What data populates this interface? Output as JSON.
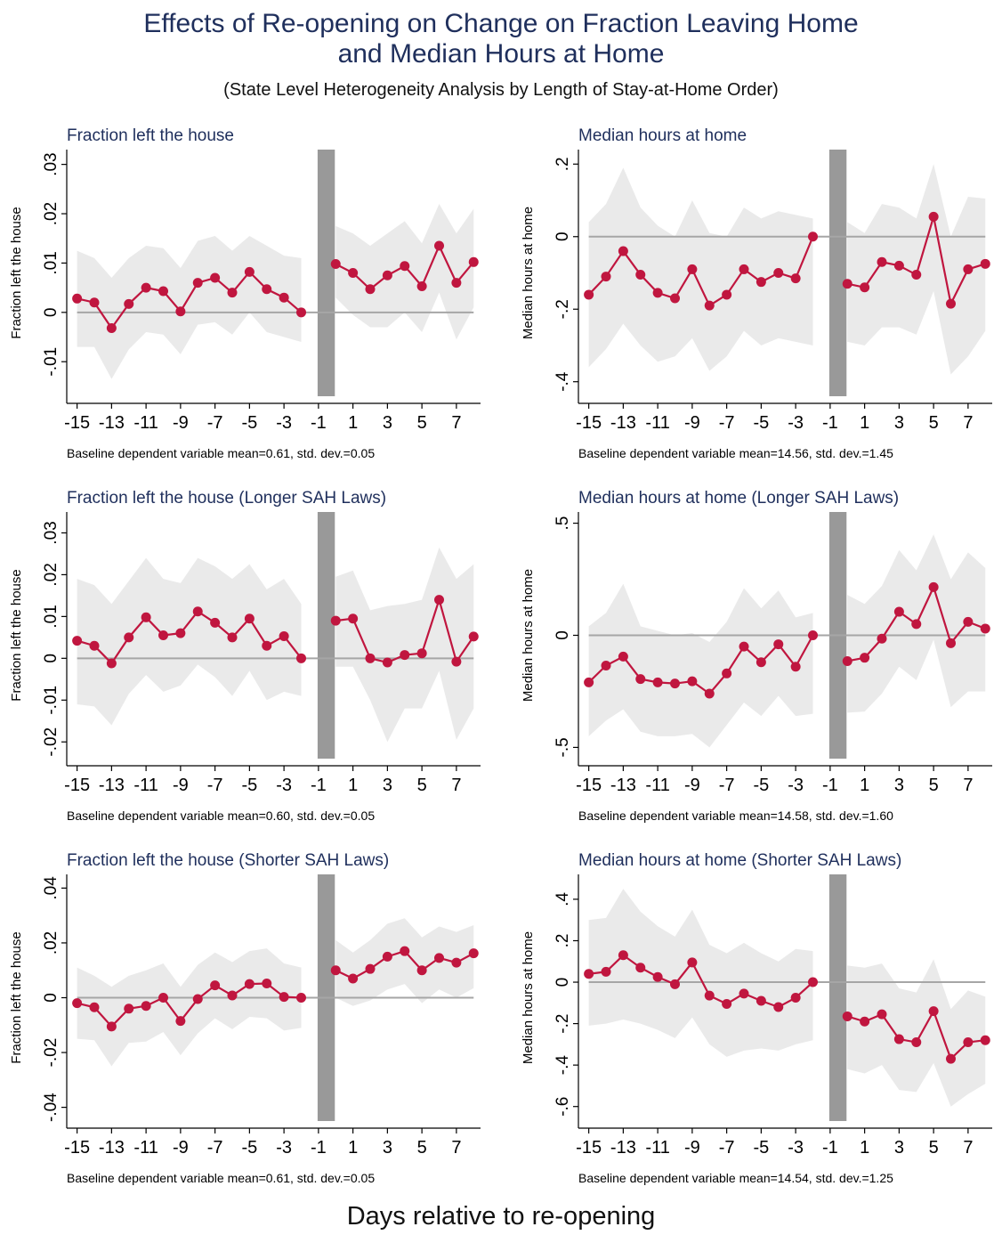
{
  "figure": {
    "title_line1": "Effects of Re-opening on Change on Fraction Leaving Home",
    "title_line2": "and Median Hours at Home",
    "subtitle": "(State Level Heterogeneity Analysis by Length of Stay-at-Home Order)",
    "xlabel": "Days relative to re-opening"
  },
  "colors": {
    "line": "#c0163f",
    "ci": "#e6e6e6",
    "zero": "#a6a6a6",
    "bar": "#999999",
    "title": "#1f2f5c"
  },
  "chart_data": [
    {
      "type": "line",
      "title": "Fraction left the house",
      "ylabel": "Fraction left the house",
      "note": "Baseline dependent variable mean=0.61, std. dev.=0.05",
      "ylim": [
        -0.017,
        0.033
      ],
      "yticks": [
        -0.01,
        0,
        0.01,
        0.02,
        0.03
      ],
      "ytick_labels": [
        "-.01",
        "0",
        ".01",
        ".02",
        ".03"
      ],
      "xticks": [
        -15,
        -13,
        -11,
        -9,
        -7,
        -5,
        -3,
        -1,
        1,
        3,
        5,
        7
      ],
      "x": [
        -15,
        -14,
        -13,
        -12,
        -11,
        -10,
        -9,
        -8,
        -7,
        -6,
        -5,
        -4,
        -3,
        -2,
        0,
        1,
        2,
        3,
        4,
        5,
        6,
        7,
        8
      ],
      "y": [
        0.0028,
        0.002,
        -0.0032,
        0.0017,
        0.005,
        0.0043,
        0.0002,
        0.006,
        0.007,
        0.004,
        0.0082,
        0.0047,
        0.003,
        0.0,
        0.0098,
        0.008,
        0.0047,
        0.0075,
        0.0094,
        0.0053,
        0.0135,
        0.006,
        0.0102
      ],
      "ci_low": [
        -0.007,
        -0.007,
        -0.0135,
        -0.0075,
        -0.004,
        -0.0045,
        -0.0085,
        -0.0025,
        -0.002,
        -0.0045,
        0.0,
        -0.004,
        -0.005,
        -0.006,
        0.003,
        -0.0005,
        -0.003,
        -0.003,
        0.0,
        -0.004,
        0.004,
        -0.0055,
        0.001
      ],
      "ci_high": [
        0.0125,
        0.011,
        0.007,
        0.011,
        0.0135,
        0.013,
        0.009,
        0.0145,
        0.0155,
        0.0125,
        0.0155,
        0.0135,
        0.0115,
        0.011,
        0.0175,
        0.016,
        0.0135,
        0.016,
        0.0185,
        0.014,
        0.022,
        0.016,
        0.021
      ],
      "break_at": -0.5
    },
    {
      "type": "line",
      "title": "Median hours at home",
      "ylabel": "Median hours at home",
      "note": "Baseline dependent variable mean=14.56, std. dev.=1.45",
      "ylim": [
        -0.44,
        0.24
      ],
      "yticks": [
        -0.4,
        -0.2,
        0,
        0.2
      ],
      "ytick_labels": [
        "-.4",
        "-.2",
        "0",
        ".2"
      ],
      "xticks": [
        -15,
        -13,
        -11,
        -9,
        -7,
        -5,
        -3,
        -1,
        1,
        3,
        5,
        7
      ],
      "x": [
        -15,
        -14,
        -13,
        -12,
        -11,
        -10,
        -9,
        -8,
        -7,
        -6,
        -5,
        -4,
        -3,
        -2,
        0,
        1,
        2,
        3,
        4,
        5,
        6,
        7,
        8
      ],
      "y": [
        -0.16,
        -0.11,
        -0.04,
        -0.105,
        -0.155,
        -0.17,
        -0.09,
        -0.19,
        -0.16,
        -0.09,
        -0.125,
        -0.1,
        -0.115,
        0.0,
        -0.13,
        -0.14,
        -0.07,
        -0.08,
        -0.105,
        0.055,
        -0.185,
        -0.09,
        -0.075
      ],
      "ci_low": [
        -0.36,
        -0.31,
        -0.24,
        -0.3,
        -0.345,
        -0.33,
        -0.28,
        -0.37,
        -0.33,
        -0.26,
        -0.3,
        -0.28,
        -0.29,
        -0.3,
        -0.29,
        -0.3,
        -0.25,
        -0.25,
        -0.27,
        -0.15,
        -0.38,
        -0.33,
        -0.26
      ],
      "ci_high": [
        0.04,
        0.09,
        0.19,
        0.08,
        0.03,
        0.0,
        0.1,
        0.01,
        0.0,
        0.08,
        0.05,
        0.07,
        0.06,
        0.05,
        0.04,
        0.01,
        0.09,
        0.08,
        0.05,
        0.2,
        0.0,
        0.11,
        0.105
      ],
      "break_at": -0.5
    },
    {
      "type": "line",
      "title": "Fraction left the house (Longer SAH Laws)",
      "ylabel": "Fraction left the house",
      "note": "Baseline dependent variable mean=0.60, std. dev.=0.05",
      "ylim": [
        -0.024,
        0.035
      ],
      "yticks": [
        -0.02,
        -0.01,
        0,
        0.01,
        0.02,
        0.03
      ],
      "ytick_labels": [
        "-.02",
        "-.01",
        "0",
        ".01",
        ".02",
        ".03"
      ],
      "xticks": [
        -15,
        -13,
        -11,
        -9,
        -7,
        -5,
        -3,
        -1,
        1,
        3,
        5,
        7
      ],
      "x": [
        -15,
        -14,
        -13,
        -12,
        -11,
        -10,
        -9,
        -8,
        -7,
        -6,
        -5,
        -4,
        -3,
        -2,
        0,
        1,
        2,
        3,
        4,
        5,
        6,
        7,
        8
      ],
      "y": [
        0.0042,
        0.003,
        -0.0012,
        0.005,
        0.0098,
        0.0055,
        0.006,
        0.0112,
        0.0085,
        0.005,
        0.0095,
        0.003,
        0.0053,
        0.0,
        0.009,
        0.0095,
        0.0,
        -0.001,
        0.0008,
        0.0012,
        0.014,
        -0.0008,
        0.0052
      ],
      "ci_low": [
        -0.011,
        -0.0115,
        -0.016,
        -0.0085,
        -0.004,
        -0.008,
        -0.0065,
        -0.0015,
        -0.0045,
        -0.009,
        -0.003,
        -0.01,
        -0.008,
        -0.009,
        -0.002,
        -0.002,
        -0.01,
        -0.02,
        -0.012,
        -0.012,
        -0.003,
        -0.0195,
        -0.012
      ],
      "ci_high": [
        0.019,
        0.0175,
        0.013,
        0.0185,
        0.024,
        0.019,
        0.018,
        0.024,
        0.022,
        0.019,
        0.0225,
        0.0165,
        0.019,
        0.013,
        0.0195,
        0.021,
        0.0115,
        0.0125,
        0.013,
        0.014,
        0.0265,
        0.019,
        0.0225
      ],
      "break_at": -0.5
    },
    {
      "type": "line",
      "title": "Median hours at home (Longer SAH Laws)",
      "ylabel": "Median hours at home",
      "note": "Baseline dependent variable mean=14.58, std. dev.=1.60",
      "ylim": [
        -0.55,
        0.55
      ],
      "yticks": [
        -0.5,
        0,
        0.5
      ],
      "ytick_labels": [
        "-.5",
        "0",
        ".5"
      ],
      "xticks": [
        -15,
        -13,
        -11,
        -9,
        -7,
        -5,
        -3,
        -1,
        1,
        3,
        5,
        7
      ],
      "x": [
        -15,
        -14,
        -13,
        -12,
        -11,
        -10,
        -9,
        -8,
        -7,
        -6,
        -5,
        -4,
        -3,
        -2,
        0,
        1,
        2,
        3,
        4,
        5,
        6,
        7,
        8
      ],
      "y": [
        -0.21,
        -0.135,
        -0.095,
        -0.195,
        -0.21,
        -0.215,
        -0.205,
        -0.26,
        -0.17,
        -0.05,
        -0.12,
        -0.04,
        -0.14,
        0.0,
        -0.115,
        -0.1,
        -0.015,
        0.105,
        0.05,
        0.215,
        -0.035,
        0.06,
        0.03
      ],
      "ci_low": [
        -0.45,
        -0.38,
        -0.33,
        -0.43,
        -0.45,
        -0.45,
        -0.44,
        -0.5,
        -0.4,
        -0.3,
        -0.36,
        -0.27,
        -0.36,
        -0.35,
        -0.345,
        -0.34,
        -0.26,
        -0.14,
        -0.2,
        -0.02,
        -0.32,
        -0.25,
        -0.25
      ],
      "ci_high": [
        0.04,
        0.1,
        0.23,
        0.04,
        0.02,
        0.0,
        0.01,
        -0.03,
        0.06,
        0.21,
        0.12,
        0.2,
        0.08,
        0.1,
        0.18,
        0.14,
        0.22,
        0.38,
        0.29,
        0.45,
        0.25,
        0.37,
        0.3
      ],
      "break_at": -0.5
    },
    {
      "type": "line",
      "title": "Fraction left the house (Shorter SAH Laws)",
      "ylabel": "Fraction left the house",
      "note": "Baseline dependent variable mean=0.61, std. dev.=0.05",
      "ylim": [
        -0.045,
        0.045
      ],
      "yticks": [
        -0.04,
        -0.02,
        0,
        0.02,
        0.04
      ],
      "ytick_labels": [
        "-.04",
        "-.02",
        "0",
        ".02",
        ".04"
      ],
      "xticks": [
        -15,
        -13,
        -11,
        -9,
        -7,
        -5,
        -3,
        -1,
        1,
        3,
        5,
        7
      ],
      "x": [
        -15,
        -14,
        -13,
        -12,
        -11,
        -10,
        -9,
        -8,
        -7,
        -6,
        -5,
        -4,
        -3,
        -2,
        0,
        1,
        2,
        3,
        4,
        5,
        6,
        7,
        8
      ],
      "y": [
        -0.002,
        -0.0035,
        -0.0105,
        -0.004,
        -0.003,
        0.0,
        -0.0085,
        -0.0005,
        0.0045,
        0.0008,
        0.005,
        0.0052,
        0.0003,
        0.0,
        0.01,
        0.007,
        0.0105,
        0.015,
        0.017,
        0.01,
        0.0145,
        0.0128,
        0.0162
      ],
      "ci_low": [
        -0.015,
        -0.0155,
        -0.025,
        -0.0165,
        -0.016,
        -0.0125,
        -0.021,
        -0.013,
        -0.0075,
        -0.0115,
        -0.007,
        -0.0075,
        -0.012,
        -0.011,
        0.0,
        -0.003,
        -0.001,
        0.003,
        0.005,
        -0.002,
        0.003,
        0.0,
        0.0035
      ],
      "ci_high": [
        0.011,
        0.008,
        0.004,
        0.008,
        0.01,
        0.0125,
        0.004,
        0.012,
        0.0165,
        0.013,
        0.017,
        0.018,
        0.0125,
        0.011,
        0.021,
        0.0165,
        0.021,
        0.027,
        0.029,
        0.022,
        0.026,
        0.024,
        0.0265
      ],
      "break_at": -0.5
    },
    {
      "type": "line",
      "title": "Median hours at home (Shorter SAH Laws)",
      "ylabel": "Median hours at home",
      "note": "Baseline dependent variable mean=14.54, std. dev.=1.25",
      "ylim": [
        -0.67,
        0.52
      ],
      "yticks": [
        -0.6,
        -0.4,
        -0.2,
        0,
        0.2,
        0.4
      ],
      "ytick_labels": [
        "-.6",
        "-.4",
        "-.2",
        "0",
        ".2",
        ".4"
      ],
      "xticks": [
        -15,
        -13,
        -11,
        -9,
        -7,
        -5,
        -3,
        -1,
        1,
        3,
        5,
        7
      ],
      "x": [
        -15,
        -14,
        -13,
        -12,
        -11,
        -10,
        -9,
        -8,
        -7,
        -6,
        -5,
        -4,
        -3,
        -2,
        0,
        1,
        2,
        3,
        4,
        5,
        6,
        7,
        8
      ],
      "y": [
        0.04,
        0.05,
        0.13,
        0.07,
        0.025,
        -0.01,
        0.095,
        -0.065,
        -0.105,
        -0.055,
        -0.09,
        -0.12,
        -0.075,
        0.0,
        -0.165,
        -0.19,
        -0.155,
        -0.275,
        -0.29,
        -0.14,
        -0.37,
        -0.29,
        -0.28
      ],
      "ci_low": [
        -0.21,
        -0.2,
        -0.18,
        -0.2,
        -0.23,
        -0.27,
        -0.17,
        -0.3,
        -0.36,
        -0.33,
        -0.32,
        -0.33,
        -0.3,
        -0.28,
        -0.42,
        -0.44,
        -0.4,
        -0.52,
        -0.53,
        -0.39,
        -0.6,
        -0.54,
        -0.49
      ],
      "ci_high": [
        0.3,
        0.31,
        0.45,
        0.34,
        0.27,
        0.22,
        0.35,
        0.18,
        0.14,
        0.19,
        0.14,
        0.1,
        0.16,
        0.15,
        0.08,
        0.07,
        0.09,
        -0.03,
        -0.05,
        0.11,
        -0.13,
        -0.04,
        -0.07
      ],
      "break_at": -0.5
    }
  ]
}
